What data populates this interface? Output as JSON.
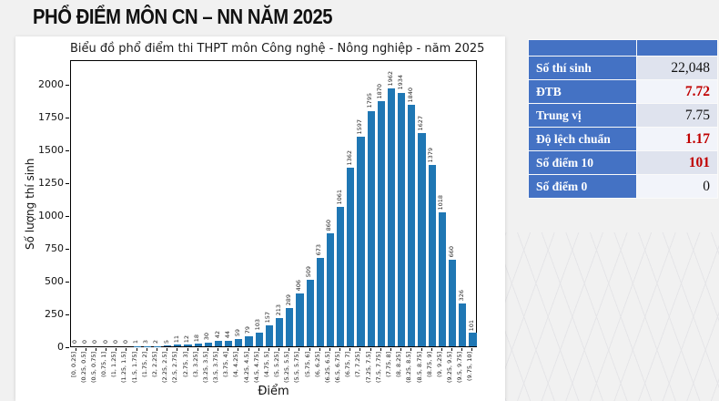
{
  "page_title": "PHỔ ĐIỂM MÔN CN – NN NĂM 2025",
  "chart_data": {
    "type": "bar",
    "title": "Biểu đồ phổ điểm thi THPT môn Công nghệ - Nông nghiệp - năm 2025",
    "xlabel": "Điểm",
    "ylabel": "Số lượng thí sinh",
    "ylim": [
      0,
      2187
    ],
    "yticks": [
      0,
      250,
      500,
      750,
      1000,
      1250,
      1500,
      1750,
      2000
    ],
    "grid": false,
    "legend": "none",
    "bar_color": "#1f77b4",
    "categories": [
      "[0, 0.25]",
      "(0.25, 0.5]",
      "(0.5, 0.75]",
      "(0.75, 1]",
      "(1, 1.25]",
      "(1.25, 1.5]",
      "(1.5, 1.75]",
      "(1.75, 2]",
      "(2, 2.25]",
      "(2.25, 2.5]",
      "(2.5, 2.75]",
      "(2.75, 3]",
      "(3, 3.25]",
      "(3.25, 3.5]",
      "(3.5, 3.75]",
      "(3.75, 4]",
      "(4, 4.25]",
      "(4.25, 4.5]",
      "(4.5, 4.75]",
      "(4.75, 5]",
      "(5, 5.25]",
      "(5.25, 5.5]",
      "(5.5, 5.75]",
      "(5.75, 6]",
      "(6, 6.25]",
      "(6.25, 6.5]",
      "(6.5, 6.75]",
      "(6.75, 7]",
      "(7, 7.25]",
      "(7.25, 7.5]",
      "(7.5, 7.75]",
      "(7.75, 8]",
      "(8, 8.25]",
      "(8.25, 8.5]",
      "(8.5, 8.75]",
      "(8.75, 9]",
      "(9, 9.25]",
      "(9.25, 9.5]",
      "(9.5, 9.75]",
      "(9.75, 10]"
    ],
    "values": [
      0,
      0,
      0,
      0,
      0,
      0,
      1,
      3,
      2,
      5,
      11,
      12,
      18,
      30,
      42,
      44,
      59,
      79,
      103,
      157,
      213,
      289,
      406,
      509,
      673,
      860,
      1061,
      1362,
      1597,
      1795,
      1870,
      1962,
      1934,
      1840,
      1627,
      1379,
      1018,
      660,
      326,
      101
    ]
  },
  "stats_table": {
    "header": [
      "",
      ""
    ],
    "rows": [
      {
        "label": "Số thí sinh",
        "value": "22,048",
        "emphasis": "black"
      },
      {
        "label": "ĐTB",
        "value": "7.72",
        "emphasis": "red"
      },
      {
        "label": "Trung vị",
        "value": "7.75",
        "emphasis": "black"
      },
      {
        "label": "Độ lệch chuẩn",
        "value": "1.17",
        "emphasis": "red"
      },
      {
        "label": "Số điểm 10",
        "value": "101",
        "emphasis": "red"
      },
      {
        "label": "Số điểm 0",
        "value": "0",
        "emphasis": "black"
      }
    ]
  },
  "colors": {
    "table_header_blue": "#4472c4",
    "value_red": "#c00000",
    "bar_blue": "#1f77b4",
    "background": "#f1f1f1"
  }
}
